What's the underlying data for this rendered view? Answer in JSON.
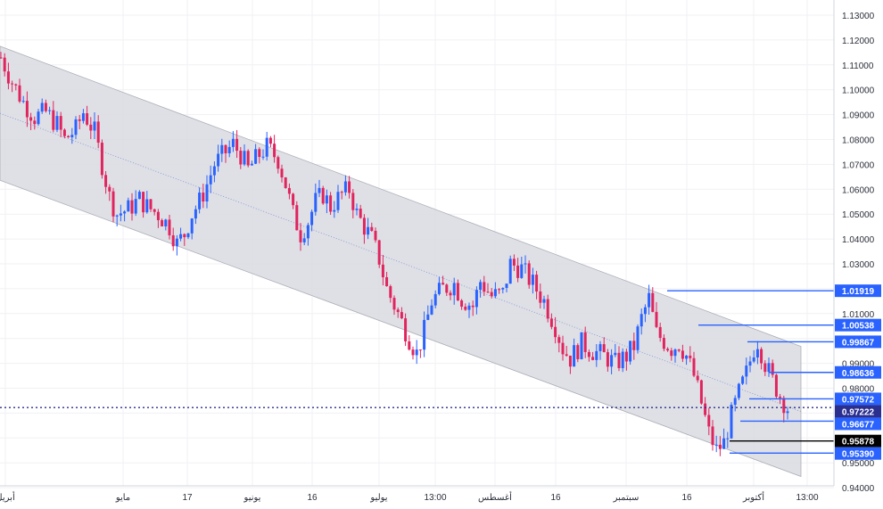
{
  "chart_data": {
    "type": "candlestick",
    "yaxis": {
      "ylim": [
        0.9381,
        1.1352
      ],
      "ticks": [
        "1.13000",
        "1.12000",
        "1.11000",
        "1.10000",
        "1.09000",
        "1.08000",
        "1.07000",
        "1.06000",
        "1.05000",
        "1.04000",
        "1.03000",
        "1.02000",
        "1.01000",
        "1.00000",
        "0.99000",
        "0.98000",
        "0.97000",
        "0.96000",
        "0.95000",
        "0.94000"
      ]
    },
    "xaxis": {
      "ticks": [
        "أبريل",
        "مايو",
        "17",
        "يونيو",
        "16",
        "يوليو",
        "13:00",
        "أغسطس",
        "16",
        "سبتمبر",
        "16",
        "أكتوبر",
        "13:00"
      ]
    },
    "last_price": {
      "value": "0.97222",
      "color": "#2a2e8f"
    },
    "price_labels": [
      {
        "value": "1.01919",
        "color": "#2962ff"
      },
      {
        "value": "1.00538",
        "color": "#2962ff"
      },
      {
        "value": "0.99867",
        "color": "#2962ff"
      },
      {
        "value": "0.98636",
        "color": "#2962ff"
      },
      {
        "value": "0.97572",
        "color": "#2962ff"
      },
      {
        "value": "0.96677",
        "color": "#2962ff"
      },
      {
        "value": "0.95878",
        "color": "#000000"
      },
      {
        "value": "0.95390",
        "color": "#2962ff"
      }
    ],
    "channel": {
      "start_upper": 1.1175,
      "end_upper": 0.9968,
      "start_lower": 1.0636,
      "end_lower": 0.9445,
      "fill": "#d9dae0"
    },
    "series_path": [
      [
        0,
        1.113
      ],
      [
        3,
        1.103
      ],
      [
        6,
        1.095
      ],
      [
        9,
        1.089
      ],
      [
        12,
        1.091
      ],
      [
        15,
        1.086
      ],
      [
        17,
        1.08
      ],
      [
        20,
        1.084
      ],
      [
        22,
        1.091
      ],
      [
        25,
        1.083
      ],
      [
        27,
        1.07
      ],
      [
        29,
        1.057
      ],
      [
        31,
        1.05
      ],
      [
        34,
        1.052
      ],
      [
        37,
        1.056
      ],
      [
        39,
        1.053
      ],
      [
        42,
        1.05
      ],
      [
        45,
        1.045
      ],
      [
        47,
        1.038
      ],
      [
        49,
        1.042
      ],
      [
        51,
        1.05
      ],
      [
        53,
        1.055
      ],
      [
        55,
        1.062
      ],
      [
        57,
        1.07
      ],
      [
        60,
        1.075
      ],
      [
        62,
        1.078
      ],
      [
        64,
        1.074
      ],
      [
        66,
        1.068
      ],
      [
        69,
        1.074
      ],
      [
        71,
        1.077
      ],
      [
        74,
        1.072
      ],
      [
        76,
        1.062
      ],
      [
        78,
        1.05
      ],
      [
        80,
        1.042
      ],
      [
        82,
        1.047
      ],
      [
        84,
        1.055
      ],
      [
        86,
        1.058
      ],
      [
        88,
        1.053
      ],
      [
        91,
        1.058
      ],
      [
        93,
        1.06
      ],
      [
        95,
        1.05
      ],
      [
        97,
        1.045
      ],
      [
        99,
        1.04
      ],
      [
        101,
        1.032
      ],
      [
        103,
        1.02
      ],
      [
        106,
        1.01
      ],
      [
        109,
        1.0
      ],
      [
        111,
        0.994
      ],
      [
        113,
        1.003
      ],
      [
        115,
        1.015
      ],
      [
        118,
        1.02
      ],
      [
        121,
        1.022
      ],
      [
        123,
        1.016
      ],
      [
        126,
        1.013
      ],
      [
        128,
        1.023
      ],
      [
        131,
        1.017
      ],
      [
        134,
        1.018
      ],
      [
        136,
        1.03
      ],
      [
        139,
        1.028
      ],
      [
        142,
        1.022
      ],
      [
        145,
        1.015
      ],
      [
        148,
        1.005
      ],
      [
        150,
        0.996
      ],
      [
        152,
        0.992
      ],
      [
        155,
        0.998
      ],
      [
        158,
        0.995
      ],
      [
        161,
        0.993
      ],
      [
        164,
        0.99
      ],
      [
        167,
        0.993
      ],
      [
        169,
        0.997
      ],
      [
        171,
        1.008
      ],
      [
        173,
        1.016
      ],
      [
        175,
        1.002
      ],
      [
        177,
        0.999
      ],
      [
        179,
        0.996
      ],
      [
        181,
        0.998
      ],
      [
        183,
        0.993
      ],
      [
        185,
        0.985
      ],
      [
        187,
        0.974
      ],
      [
        189,
        0.962
      ],
      [
        191,
        0.955
      ],
      [
        193,
        0.958
      ],
      [
        195,
        0.969
      ],
      [
        197,
        0.978
      ],
      [
        199,
        0.986
      ],
      [
        201,
        0.996
      ],
      [
        202,
        0.999
      ],
      [
        204,
        0.99
      ],
      [
        206,
        0.983
      ],
      [
        208,
        0.977
      ],
      [
        210,
        0.972
      ]
    ]
  }
}
